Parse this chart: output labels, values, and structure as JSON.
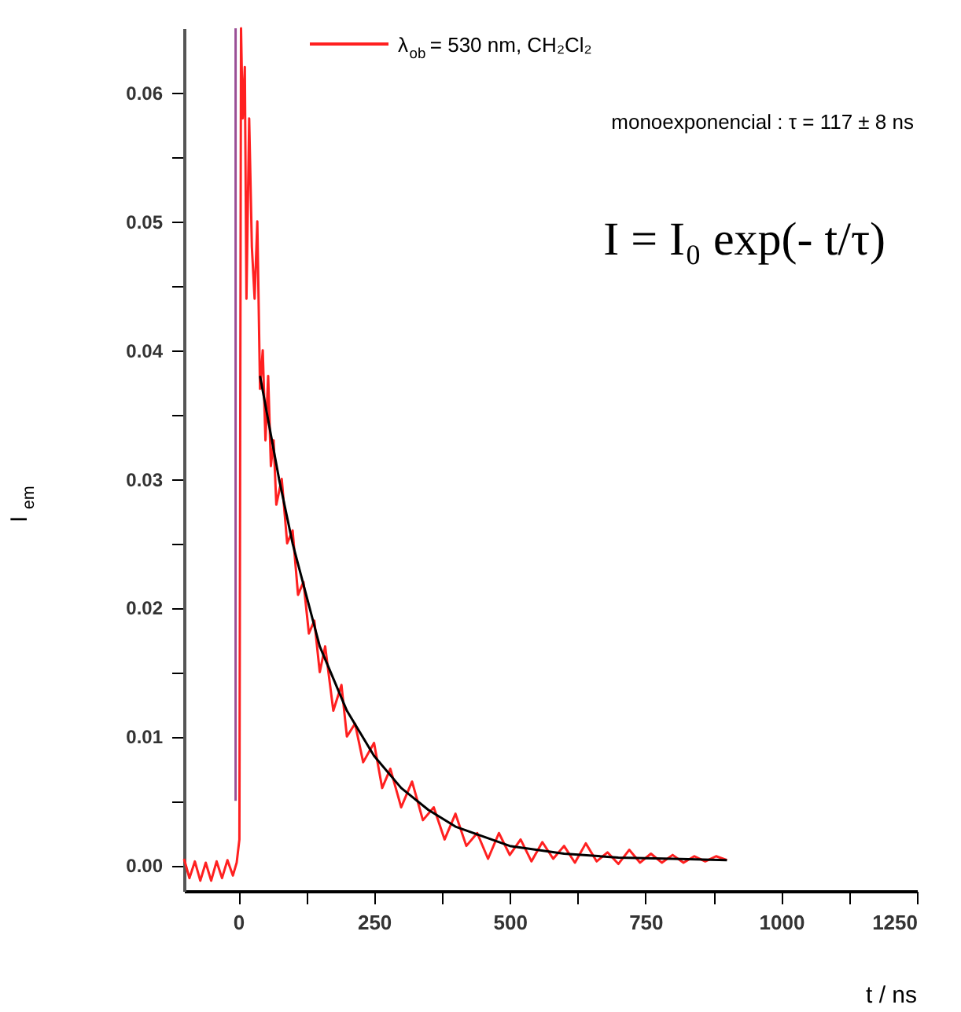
{
  "chart_data": {
    "type": "line",
    "xlabel": "t / ns",
    "ylabel": "I$_{em}$",
    "xlim": [
      -100,
      1250
    ],
    "ylim": [
      -0.002,
      0.065
    ],
    "xticks": [
      0,
      {
        "value": 125,
        "label": null
      },
      250,
      {
        "value": 375,
        "label": null
      },
      500,
      {
        "value": 625,
        "label": null
      },
      750,
      {
        "value": 875,
        "label": null
      },
      1000,
      {
        "value": 1125,
        "label": null
      },
      1250
    ],
    "yticks": [
      {
        "value": 0,
        "label": "0.00"
      },
      {
        "value": 0.005,
        "label": null
      },
      0.01,
      {
        "value": 0.015,
        "label": null
      },
      0.02,
      {
        "value": 0.025,
        "label": null
      },
      0.03,
      {
        "value": 0.035,
        "label": null
      },
      0.04,
      {
        "value": 0.045,
        "label": null
      },
      0.05,
      {
        "value": 0.055,
        "label": null
      },
      0.06
    ],
    "grid": false,
    "legend": "top",
    "marker": "none",
    "line_style": "solid",
    "annotations": [
      "monoexponencial : τ = 117 ± 8 ns",
      "I = I₀ exp(- t/τ)"
    ],
    "series": [
      {
        "name": "λ$_{ob}$ = 530 nm, CH₂Cl₂",
        "color": "#ff2020",
        "x": [
          -100,
          -90,
          -80,
          -70,
          -60,
          -50,
          -40,
          -30,
          -20,
          -10,
          -3,
          2,
          5,
          8,
          12,
          15,
          20,
          25,
          30,
          35,
          40,
          45,
          50,
          55,
          60,
          65,
          70,
          80,
          90,
          100,
          110,
          120,
          130,
          140,
          150,
          160,
          175,
          190,
          200,
          215,
          230,
          250,
          265,
          280,
          300,
          320,
          340,
          360,
          380,
          400,
          420,
          440,
          460,
          480,
          500,
          520,
          540,
          560,
          580,
          600,
          620,
          640,
          660,
          680,
          700,
          720,
          740,
          760,
          780,
          800,
          820,
          840,
          860,
          880,
          900
        ],
        "values": [
          0.0005,
          -0.001,
          0.0003,
          -0.0012,
          0.0002,
          -0.0012,
          0.0003,
          -0.001,
          0.0004,
          -0.0008,
          0.0002,
          0.002,
          0.065,
          0.058,
          0.062,
          0.044,
          0.058,
          0.048,
          0.044,
          0.05,
          0.037,
          0.04,
          0.033,
          0.038,
          0.031,
          0.033,
          0.028,
          0.03,
          0.025,
          0.026,
          0.021,
          0.022,
          0.018,
          0.019,
          0.015,
          0.017,
          0.012,
          0.014,
          0.01,
          0.011,
          0.008,
          0.0095,
          0.006,
          0.0075,
          0.0045,
          0.0065,
          0.0035,
          0.0045,
          0.002,
          0.004,
          0.0015,
          0.0025,
          0.0005,
          0.0025,
          0.0008,
          0.002,
          0.0003,
          0.0018,
          0.0005,
          0.0015,
          0.0002,
          0.0017,
          0.0003,
          0.001,
          0.0001,
          0.0012,
          0.0002,
          0.0009,
          0.0002,
          0.0008,
          0.0002,
          0.0007,
          0.0003,
          0.0007,
          0.0004
        ]
      },
      {
        "color": "#9b4f96",
        "x": [
          -5,
          -5
        ],
        "values": [
          0.005,
          0.065
        ]
      },
      {
        "color": "#000000",
        "x": [
          40,
          75,
          100,
          150,
          200,
          250,
          300,
          350,
          400,
          500,
          600,
          700,
          800,
          900
        ],
        "values": [
          0.038,
          0.03,
          0.025,
          0.017,
          0.012,
          0.0085,
          0.006,
          0.0043,
          0.003,
          0.0015,
          0.0009,
          0.0006,
          0.0005,
          0.0004
        ]
      }
    ]
  }
}
